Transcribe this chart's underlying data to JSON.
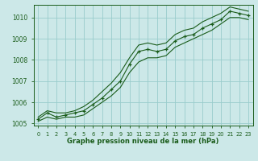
{
  "xlabel": "Graphe pression niveau de la mer (hPa)",
  "bg_color": "#cce8e8",
  "grid_color": "#99cccc",
  "line_color": "#1a5c1a",
  "x_values": [
    0,
    1,
    2,
    3,
    4,
    5,
    6,
    7,
    8,
    9,
    10,
    11,
    12,
    13,
    14,
    15,
    16,
    17,
    18,
    19,
    20,
    21,
    22,
    23
  ],
  "y_main": [
    1005.2,
    1005.5,
    1005.3,
    1005.4,
    1005.5,
    1005.6,
    1005.9,
    1006.2,
    1006.6,
    1007.0,
    1007.8,
    1008.4,
    1008.5,
    1008.4,
    1008.5,
    1008.9,
    1009.1,
    1009.2,
    1009.5,
    1009.7,
    1009.9,
    1010.3,
    1010.2,
    1010.1
  ],
  "y_low": [
    1005.1,
    1005.3,
    1005.2,
    1005.3,
    1005.3,
    1005.4,
    1005.7,
    1006.0,
    1006.3,
    1006.7,
    1007.4,
    1007.9,
    1008.1,
    1008.1,
    1008.2,
    1008.6,
    1008.8,
    1009.0,
    1009.2,
    1009.4,
    1009.7,
    1010.0,
    1010.0,
    1009.9
  ],
  "y_high": [
    1005.3,
    1005.6,
    1005.5,
    1005.5,
    1005.6,
    1005.8,
    1006.1,
    1006.5,
    1006.9,
    1007.4,
    1008.1,
    1008.7,
    1008.8,
    1008.7,
    1008.8,
    1009.2,
    1009.4,
    1009.5,
    1009.8,
    1010.0,
    1010.2,
    1010.5,
    1010.4,
    1010.3
  ],
  "ylim": [
    1004.9,
    1010.6
  ],
  "yticks": [
    1005,
    1006,
    1007,
    1008,
    1009,
    1010
  ],
  "xlim": [
    -0.5,
    23.5
  ],
  "xticks": [
    0,
    1,
    2,
    3,
    4,
    5,
    6,
    7,
    8,
    9,
    10,
    11,
    12,
    13,
    14,
    15,
    16,
    17,
    18,
    19,
    20,
    21,
    22,
    23
  ]
}
